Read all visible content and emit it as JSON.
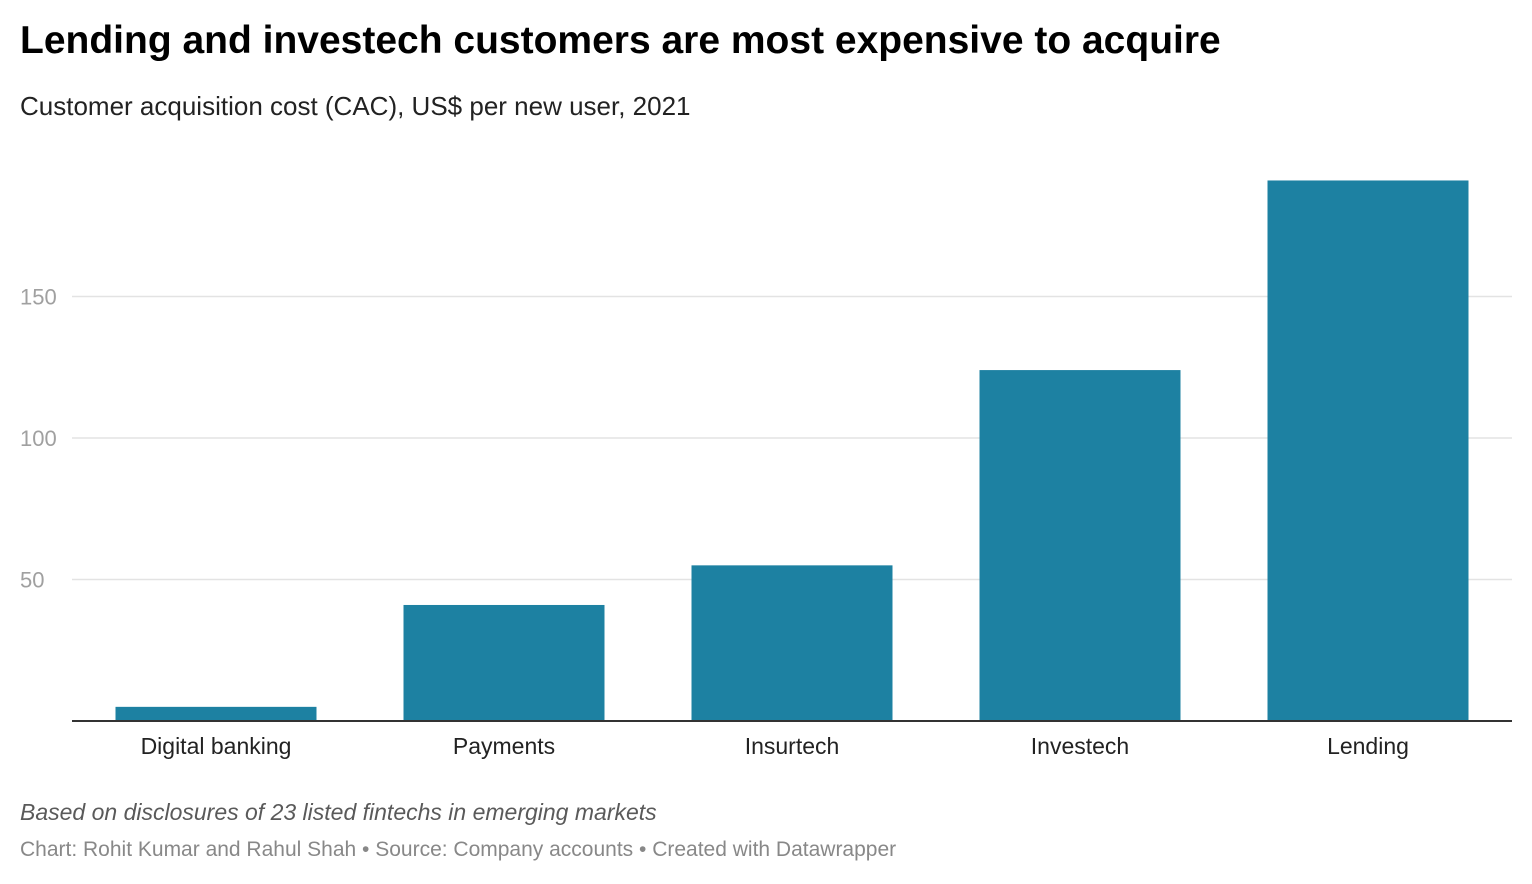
{
  "header": {
    "title": "Lending and investech customers are most expensive to acquire",
    "subtitle": "Customer acquisition cost (CAC), US$ per new user, 2021"
  },
  "chart_data": {
    "type": "bar",
    "title": "Lending and investech customers are most expensive to acquire",
    "subtitle": "Customer acquisition cost (CAC), US$ per new user, 2021",
    "categories": [
      "Digital banking",
      "Payments",
      "Insurtech",
      "Investech",
      "Lending"
    ],
    "values": [
      5,
      41,
      55,
      124,
      191
    ],
    "xlabel": "",
    "ylabel": "",
    "ylim": [
      0,
      200
    ],
    "yticks": [
      50,
      100,
      150
    ],
    "ytick_labels": [
      "50",
      "100",
      "150"
    ],
    "grid": true,
    "legend": "none",
    "bar_color": "#1d81a2",
    "gridline_color": "#e3e3e3",
    "axis_color": "#333333",
    "tick_label_color": "#a0a0a0"
  },
  "footer": {
    "note": "Based on disclosures of 23 listed fintechs in emerging markets",
    "credits": "Chart: Rohit Kumar and Rahul Shah • Source: Company accounts • Created with Datawrapper"
  }
}
